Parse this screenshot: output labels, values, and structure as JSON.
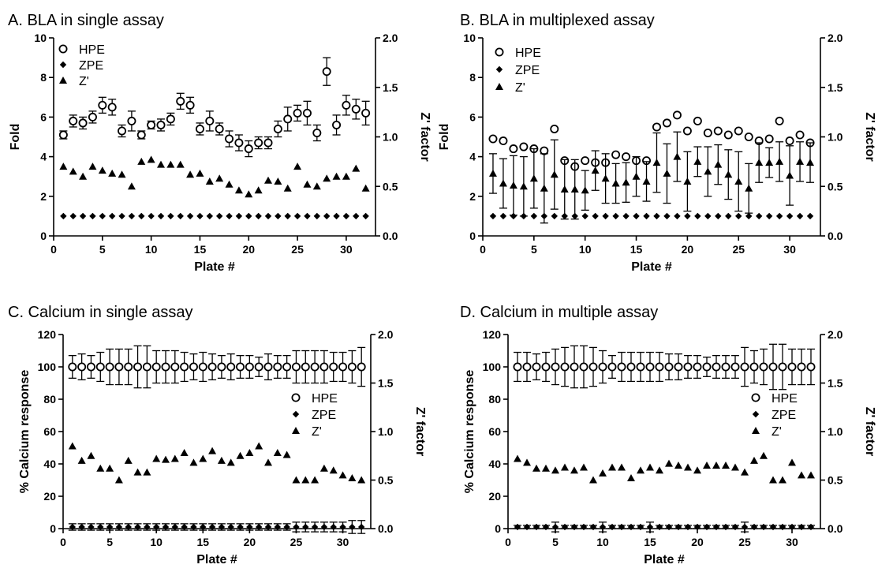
{
  "chart_data": [
    {
      "type": "scatter",
      "title": "A. BLA in single assay",
      "xlabel": "Plate #",
      "ylabel": "Fold",
      "y2label": "Z' factor",
      "xlim": [
        0,
        33
      ],
      "xticks": [
        0,
        5,
        10,
        15,
        20,
        25,
        30
      ],
      "ylim": [
        0,
        10
      ],
      "yticks": [
        0,
        2,
        4,
        6,
        8,
        10
      ],
      "y2lim": [
        0.0,
        2.0
      ],
      "y2ticks": [
        "0.0",
        "0.5",
        "1.0",
        "1.5",
        "2.0"
      ],
      "legend_position": "top-left",
      "x": [
        1,
        2,
        3,
        4,
        5,
        6,
        7,
        8,
        9,
        10,
        11,
        12,
        13,
        14,
        15,
        16,
        17,
        18,
        19,
        20,
        21,
        22,
        23,
        24,
        25,
        26,
        27,
        28,
        29,
        30,
        31,
        32
      ],
      "series": [
        {
          "name": "HPE",
          "axis": "left",
          "marker": "open-circle",
          "values": [
            5.1,
            5.8,
            5.7,
            6.0,
            6.6,
            6.5,
            5.3,
            5.8,
            5.1,
            5.6,
            5.6,
            5.9,
            6.8,
            6.6,
            5.4,
            5.8,
            5.4,
            4.9,
            4.7,
            4.4,
            4.7,
            4.7,
            5.4,
            5.9,
            6.2,
            6.2,
            5.2,
            8.3,
            5.6,
            6.6,
            6.4,
            6.2
          ],
          "errors": [
            0.2,
            0.3,
            0.3,
            0.3,
            0.4,
            0.4,
            0.3,
            0.5,
            0.2,
            0.2,
            0.3,
            0.3,
            0.4,
            0.4,
            0.3,
            0.5,
            0.3,
            0.4,
            0.4,
            0.4,
            0.3,
            0.3,
            0.4,
            0.6,
            0.4,
            0.6,
            0.4,
            0.7,
            0.5,
            0.5,
            0.5,
            0.6
          ]
        },
        {
          "name": "ZPE",
          "axis": "left",
          "marker": "filled-diamond",
          "values": [
            1,
            1,
            1,
            1,
            1,
            1,
            1,
            1,
            1,
            1,
            1,
            1,
            1,
            1,
            1,
            1,
            1,
            1,
            1,
            1,
            1,
            1,
            1,
            1,
            1,
            1,
            1,
            1,
            1,
            1,
            1,
            1
          ]
        },
        {
          "name": "Z'",
          "axis": "right",
          "marker": "filled-triangle",
          "values": [
            0.7,
            0.65,
            0.6,
            0.7,
            0.66,
            0.63,
            0.62,
            0.5,
            0.75,
            0.77,
            0.72,
            0.72,
            0.72,
            0.62,
            0.63,
            0.55,
            0.58,
            0.52,
            0.46,
            0.42,
            0.46,
            0.56,
            0.55,
            0.48,
            0.7,
            0.52,
            0.5,
            0.58,
            0.6,
            0.6,
            0.68,
            0.48
          ]
        }
      ]
    },
    {
      "type": "scatter",
      "title": "B. BLA in multiplexed assay",
      "xlabel": "Plate #",
      "ylabel": "Fold",
      "y2label": "Z' factor",
      "xlim": [
        0,
        33
      ],
      "xticks": [
        0,
        5,
        10,
        15,
        20,
        25,
        30
      ],
      "ylim": [
        0,
        10
      ],
      "yticks": [
        0,
        2,
        4,
        6,
        8,
        10
      ],
      "y2lim": [
        0.0,
        2.0
      ],
      "y2ticks": [
        "0.0",
        "0.5",
        "1.0",
        "1.5",
        "2.0"
      ],
      "legend_position": "top-left",
      "x": [
        1,
        2,
        3,
        4,
        5,
        6,
        7,
        8,
        9,
        10,
        11,
        12,
        13,
        14,
        15,
        16,
        17,
        18,
        19,
        20,
        21,
        22,
        23,
        24,
        25,
        26,
        27,
        28,
        29,
        30,
        31,
        32
      ],
      "series": [
        {
          "name": "HPE",
          "axis": "left",
          "marker": "open-circle",
          "values": [
            4.9,
            4.8,
            4.4,
            4.5,
            4.4,
            4.3,
            5.4,
            3.8,
            3.5,
            3.8,
            3.7,
            3.7,
            4.1,
            4.0,
            3.8,
            3.8,
            5.5,
            5.7,
            6.1,
            5.3,
            5.8,
            5.2,
            5.3,
            5.1,
            5.3,
            5.0,
            4.8,
            4.9,
            5.8,
            4.8,
            5.1,
            4.7
          ]
        },
        {
          "name": "ZPE",
          "axis": "left",
          "marker": "filled-diamond",
          "values": [
            1,
            1,
            1,
            1,
            1,
            1,
            1,
            1,
            1,
            1,
            1,
            1,
            1,
            1,
            1,
            1,
            1,
            1,
            1,
            1,
            1,
            1,
            1,
            1,
            1,
            1,
            1,
            1,
            1,
            1,
            1,
            1
          ]
        },
        {
          "name": "Z'",
          "axis": "right",
          "marker": "filled-triangle",
          "values": [
            0.63,
            0.53,
            0.51,
            0.5,
            0.58,
            0.48,
            0.62,
            0.47,
            0.47,
            0.46,
            0.66,
            0.58,
            0.53,
            0.54,
            0.6,
            0.55,
            0.74,
            0.63,
            0.8,
            0.55,
            0.75,
            0.65,
            0.72,
            0.62,
            0.55,
            0.48,
            0.74,
            0.74,
            0.75,
            0.61,
            0.75,
            0.74
          ],
          "errors": [
            0.2,
            0.25,
            0.3,
            0.3,
            0.3,
            0.35,
            0.35,
            0.3,
            0.3,
            0.2,
            0.2,
            0.25,
            0.2,
            0.2,
            0.2,
            0.2,
            0.3,
            0.3,
            0.25,
            0.3,
            0.15,
            0.25,
            0.2,
            0.25,
            0.3,
            0.25,
            0.2,
            0.15,
            0.2,
            0.3,
            0.2,
            0.2
          ]
        }
      ]
    },
    {
      "type": "scatter",
      "title": "C. Calcium in single assay",
      "xlabel": "Plate #",
      "ylabel": "% Calcium response",
      "y2label": "Z' factor",
      "xlim": [
        0,
        33
      ],
      "xticks": [
        0,
        5,
        10,
        15,
        20,
        25,
        30
      ],
      "ylim": [
        0,
        120
      ],
      "yticks": [
        0,
        20,
        40,
        60,
        80,
        100,
        120
      ],
      "y2lim": [
        0.0,
        2.0
      ],
      "y2ticks": [
        "0.0",
        "0.5",
        "1.0",
        "1.5",
        "2.0"
      ],
      "legend_position": "right",
      "x": [
        1,
        2,
        3,
        4,
        5,
        6,
        7,
        8,
        9,
        10,
        11,
        12,
        13,
        14,
        15,
        16,
        17,
        18,
        19,
        20,
        21,
        22,
        23,
        24,
        25,
        26,
        27,
        28,
        29,
        30,
        31,
        32
      ],
      "series": [
        {
          "name": "HPE",
          "axis": "left",
          "marker": "open-circle",
          "values": [
            100,
            100,
            100,
            100,
            100,
            100,
            100,
            100,
            100,
            100,
            100,
            100,
            100,
            100,
            100,
            100,
            100,
            100,
            100,
            100,
            100,
            100,
            100,
            100,
            100,
            100,
            100,
            100,
            100,
            100,
            100,
            100
          ],
          "errors": [
            7,
            8,
            7,
            9,
            11,
            11,
            11,
            13,
            13,
            10,
            10,
            10,
            9,
            8,
            9,
            8,
            7,
            8,
            7,
            7,
            6,
            8,
            7,
            7,
            10,
            10,
            10,
            10,
            9,
            9,
            10,
            12
          ]
        },
        {
          "name": "ZPE",
          "axis": "left",
          "marker": "filled-diamond",
          "values": [
            1,
            1,
            1,
            1,
            1,
            1,
            1,
            1,
            1,
            1,
            1,
            1,
            1,
            1,
            1,
            1,
            1,
            1,
            1,
            1,
            1,
            1,
            1,
            1,
            1,
            1,
            1,
            1,
            1,
            1,
            1,
            1
          ],
          "errors": [
            2,
            2,
            2,
            2,
            2,
            2,
            2,
            2,
            2,
            2,
            2,
            2,
            2,
            2,
            2,
            2,
            2,
            2,
            2,
            2,
            2,
            2,
            2,
            2,
            3,
            3,
            3,
            3,
            3,
            3,
            4,
            4
          ]
        },
        {
          "name": "Z'",
          "axis": "right",
          "marker": "filled-triangle",
          "values": [
            0.85,
            0.7,
            0.75,
            0.62,
            0.62,
            0.5,
            0.7,
            0.58,
            0.58,
            0.72,
            0.71,
            0.72,
            0.78,
            0.68,
            0.72,
            0.8,
            0.7,
            0.68,
            0.75,
            0.78,
            0.85,
            0.68,
            0.78,
            0.76,
            0.5,
            0.5,
            0.5,
            0.62,
            0.6,
            0.55,
            0.52,
            0.5
          ]
        }
      ]
    },
    {
      "type": "scatter",
      "title": "D. Calcium in multiple assay",
      "xlabel": "Plate #",
      "ylabel": "% Calcium response",
      "y2label": "Z' factor",
      "xlim": [
        0,
        33
      ],
      "xticks": [
        0,
        5,
        10,
        15,
        20,
        25,
        30
      ],
      "ylim": [
        0,
        120
      ],
      "yticks": [
        0,
        20,
        40,
        60,
        80,
        100,
        120
      ],
      "y2lim": [
        0.0,
        2.0
      ],
      "y2ticks": [
        "0.0",
        "0.5",
        "1.0",
        "1.5",
        "2.0"
      ],
      "legend_position": "right",
      "x": [
        1,
        2,
        3,
        4,
        5,
        6,
        7,
        8,
        9,
        10,
        11,
        12,
        13,
        14,
        15,
        16,
        17,
        18,
        19,
        20,
        21,
        22,
        23,
        24,
        25,
        26,
        27,
        28,
        29,
        30,
        31,
        32
      ],
      "series": [
        {
          "name": "HPE",
          "axis": "left",
          "marker": "open-circle",
          "values": [
            100,
            100,
            100,
            100,
            100,
            100,
            100,
            100,
            100,
            100,
            100,
            100,
            100,
            100,
            100,
            100,
            100,
            100,
            100,
            100,
            100,
            100,
            100,
            100,
            100,
            100,
            100,
            100,
            100,
            100,
            100,
            100
          ],
          "errors": [
            9,
            9,
            8,
            9,
            11,
            12,
            13,
            13,
            12,
            10,
            7,
            9,
            9,
            9,
            9,
            9,
            8,
            8,
            7,
            7,
            6,
            7,
            7,
            7,
            12,
            10,
            11,
            14,
            14,
            11,
            11,
            11
          ]
        },
        {
          "name": "ZPE",
          "axis": "left",
          "marker": "filled-diamond",
          "values": [
            1,
            1,
            1,
            1,
            1,
            1,
            1,
            1,
            1,
            1,
            1,
            1,
            1,
            1,
            1,
            1,
            1,
            1,
            1,
            1,
            1,
            1,
            1,
            1,
            1,
            1,
            1,
            1,
            1,
            1,
            1,
            1
          ],
          "errors": [
            1,
            1,
            1,
            1,
            3,
            1,
            1,
            1,
            1,
            3,
            1,
            1,
            1,
            1,
            3,
            1,
            1,
            1,
            1,
            1,
            1,
            1,
            1,
            1,
            3,
            1,
            1,
            1,
            1,
            1,
            1,
            1
          ]
        },
        {
          "name": "Z'",
          "axis": "right",
          "marker": "filled-triangle",
          "values": [
            0.72,
            0.68,
            0.62,
            0.62,
            0.6,
            0.63,
            0.6,
            0.63,
            0.5,
            0.57,
            0.63,
            0.63,
            0.52,
            0.6,
            0.63,
            0.6,
            0.67,
            0.65,
            0.63,
            0.6,
            0.65,
            0.65,
            0.65,
            0.63,
            0.58,
            0.7,
            0.75,
            0.5,
            0.5,
            0.68,
            0.55,
            0.55
          ]
        }
      ]
    }
  ]
}
